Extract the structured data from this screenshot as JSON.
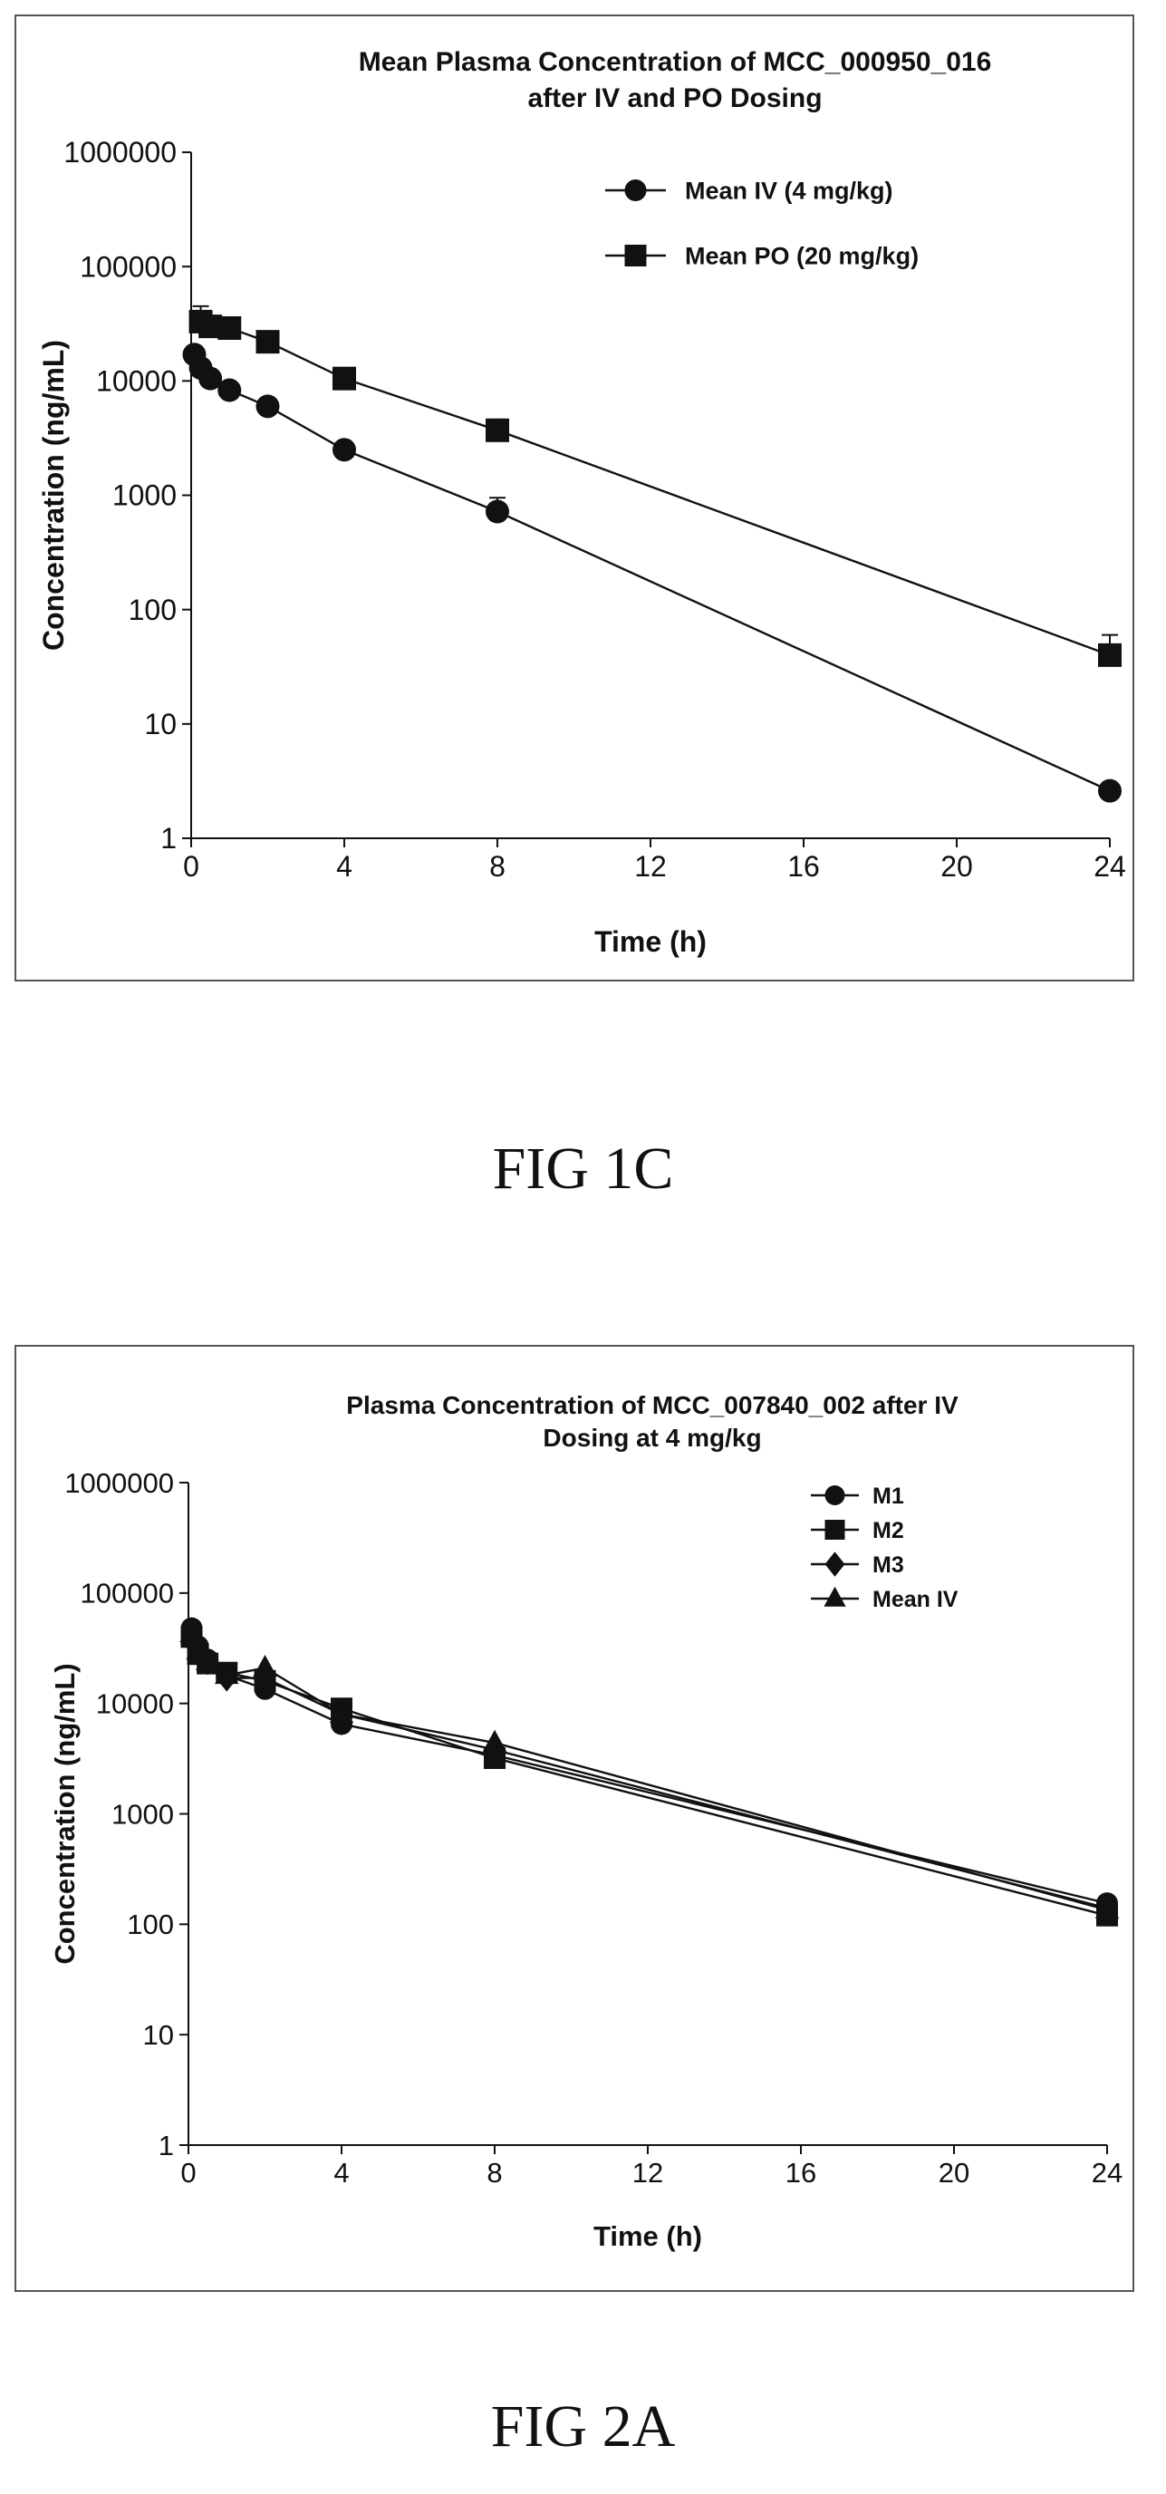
{
  "chart_data": [
    {
      "type": "line",
      "title": [
        "Mean Plasma Concentration of MCC_000950_016",
        "after IV and PO Dosing"
      ],
      "xlabel": "Time (h)",
      "ylabel": "Concentration (ng/mL)",
      "y_scale": "log",
      "xlim": [
        0,
        24
      ],
      "ylim": [
        1,
        1000000
      ],
      "x_ticks": [
        "0",
        "4",
        "8",
        "12",
        "16",
        "20",
        "24"
      ],
      "y_ticks": [
        "1",
        "10",
        "100",
        "1000",
        "10000",
        "100000",
        "1000000"
      ],
      "grid": false,
      "legend_position": "top-right",
      "series": [
        {
          "name": "Mean IV (4 mg/kg)",
          "marker": "circle",
          "x": [
            0.083,
            0.25,
            0.5,
            1,
            2,
            4,
            8,
            24
          ],
          "y": [
            17000,
            13000,
            10500,
            8300,
            6000,
            2500,
            720,
            2.6
          ],
          "error_up": [
            null,
            null,
            null,
            null,
            null,
            null,
            950,
            null
          ]
        },
        {
          "name": "Mean PO (20 mg/kg)",
          "marker": "square",
          "x": [
            0.25,
            0.5,
            1,
            2,
            4,
            8,
            24
          ],
          "y": [
            33000,
            30000,
            29000,
            22000,
            10500,
            3700,
            40
          ],
          "error_up": [
            45000,
            null,
            null,
            null,
            null,
            4600,
            60
          ]
        }
      ]
    },
    {
      "type": "line",
      "title": [
        "Plasma Concentration of MCC_007840_002 after IV",
        "Dosing at 4 mg/kg"
      ],
      "xlabel": "Time (h)",
      "ylabel": "Concentration (ng/mL)",
      "y_scale": "log",
      "xlim": [
        0,
        24
      ],
      "ylim": [
        1,
        1000000
      ],
      "x_ticks": [
        "0",
        "4",
        "8",
        "12",
        "16",
        "20",
        "24"
      ],
      "y_ticks": [
        "1",
        "10",
        "100",
        "1000",
        "10000",
        "100000",
        "1000000"
      ],
      "grid": false,
      "legend_position": "top-right",
      "series": [
        {
          "name": "M1",
          "marker": "circle",
          "x": [
            0.083,
            0.25,
            0.5,
            1,
            2,
            4,
            8,
            24
          ],
          "y": [
            48000,
            33000,
            25000,
            18000,
            13500,
            6500,
            3400,
            155
          ]
        },
        {
          "name": "M2",
          "marker": "square",
          "x": [
            0.083,
            0.25,
            0.5,
            1,
            2,
            4,
            8,
            24
          ],
          "y": [
            40000,
            28000,
            23000,
            19000,
            16000,
            9000,
            3200,
            120
          ]
        },
        {
          "name": "M3",
          "marker": "diamond",
          "x": [
            0.083,
            0.25,
            0.5,
            1,
            2,
            4,
            8,
            24
          ],
          "y": [
            42000,
            30000,
            24000,
            17000,
            17000,
            8000,
            3800,
            140
          ]
        },
        {
          "name": "Mean IV",
          "marker": "triangle",
          "x": [
            0.083,
            0.25,
            0.5,
            1,
            2,
            4,
            8,
            24
          ],
          "y": [
            43000,
            30000,
            24000,
            18000,
            21000,
            8000,
            4400,
            135
          ]
        }
      ]
    }
  ],
  "captions": [
    "FIG 1C",
    "FIG 2A"
  ],
  "colors": {
    "ink": "#111111",
    "frame": "#555555",
    "background": "#ffffff"
  }
}
